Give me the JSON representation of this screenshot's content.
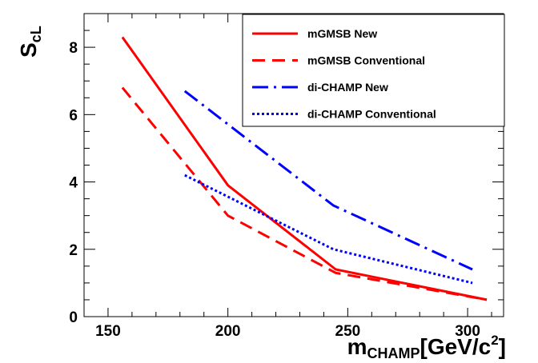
{
  "chart_data": {
    "type": "line",
    "xlabel": {
      "main": "m",
      "sub": "CHAMP",
      "unit_pre": "[GeV/c",
      "unit_sup": "2",
      "unit_post": "]"
    },
    "ylabel": {
      "main": "S",
      "sub": "cL"
    },
    "xlim": [
      140,
      315
    ],
    "ylim": [
      0,
      9
    ],
    "xticks": [
      150,
      200,
      250,
      300
    ],
    "yticks": [
      0,
      2,
      4,
      6,
      8
    ],
    "series": [
      {
        "name": "mGMSB New",
        "color": "#ff0000",
        "dash": "solid",
        "x": [
          156,
          200,
          245,
          308
        ],
        "y": [
          8.3,
          3.9,
          1.4,
          0.5
        ]
      },
      {
        "name": "mGMSB Conventional",
        "color": "#ff0000",
        "dash": "dashed",
        "x": [
          156,
          200,
          245,
          308
        ],
        "y": [
          6.8,
          3.0,
          1.3,
          0.5
        ]
      },
      {
        "name": "di-CHAMP New",
        "color": "#0000ff",
        "dash": "dashdot",
        "x": [
          182,
          244,
          302
        ],
        "y": [
          6.7,
          3.3,
          1.4
        ]
      },
      {
        "name": "di-CHAMP Conventional",
        "color": "#0000ff",
        "dash": "dotted",
        "x": [
          182,
          244,
          302
        ],
        "y": [
          4.2,
          2.0,
          1.0
        ]
      }
    ],
    "legend_position": "top-right"
  }
}
